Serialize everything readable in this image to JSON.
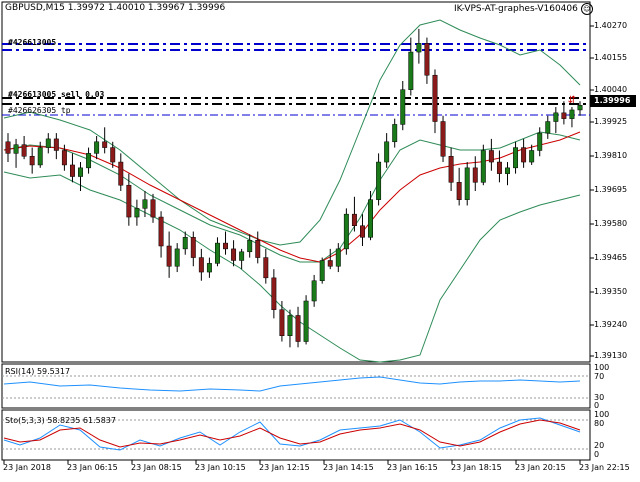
{
  "header": {
    "symbol_info": "GBPUSD,M15  1.39972 1.40010 1.39967 1.39996",
    "ea_name": "IK-VPS-AT-graphes-V160406",
    "ea_icon": "smiley-icon"
  },
  "order_tags": {
    "tag1": "#426613005",
    "tag2": "#426613005 sell 0.03",
    "tag3": "#426626305 tp"
  },
  "price_axis": {
    "labels": [
      "1.40270",
      "1.40155",
      "1.40040",
      "1.39925",
      "1.39810",
      "1.39695",
      "1.39580",
      "1.39465",
      "1.39350",
      "1.39240",
      "1.39130"
    ],
    "current_price": "1.39996"
  },
  "time_axis": {
    "labels": [
      "23 Jan 2018",
      "23 Jan 06:15",
      "23 Jan 08:15",
      "23 Jan 10:15",
      "23 Jan 12:15",
      "23 Jan 14:15",
      "23 Jan 16:15",
      "23 Jan 18:15",
      "23 Jan 20:15",
      "23 Jan 22:15"
    ]
  },
  "rsi": {
    "title": "RSI(14) 59.5317",
    "levels": [
      "100",
      "70",
      "30",
      "0"
    ]
  },
  "stoch": {
    "title": "Sto(5,3,3) 58.8235 61.5837",
    "levels": [
      "100",
      "80",
      "20",
      "0"
    ]
  },
  "colors": {
    "bull_candle": "#1a7a1a",
    "bear_candle": "#8b1a1a",
    "bollinger": "#2e8b57",
    "ma": "#cc0000",
    "rsi_line": "#1e90ff",
    "stoch_main": "#1e90ff",
    "stoch_signal": "#cc0000",
    "order_line_blue": "#0000cc",
    "order_line_black": "#000000"
  },
  "chart_data": {
    "type": "candlestick",
    "symbol": "GBPUSD",
    "timeframe": "M15",
    "candles": [
      [
        1.3987,
        1.399,
        1.398,
        1.3983
      ],
      [
        1.3983,
        1.3988,
        1.3978,
        1.3986
      ],
      [
        1.3986,
        1.3989,
        1.3981,
        1.3982
      ],
      [
        1.3982,
        1.3985,
        1.3976,
        1.3979
      ],
      [
        1.3979,
        1.3987,
        1.3978,
        1.3985
      ],
      [
        1.3985,
        1.399,
        1.3983,
        1.3988
      ],
      [
        1.3988,
        1.399,
        1.3981,
        1.3984
      ],
      [
        1.3984,
        1.3986,
        1.3977,
        1.3979
      ],
      [
        1.3979,
        1.3983,
        1.3973,
        1.3975
      ],
      [
        1.3975,
        1.398,
        1.397,
        1.3978
      ],
      [
        1.3978,
        1.3985,
        1.3976,
        1.3983
      ],
      [
        1.3983,
        1.3989,
        1.3981,
        1.3987
      ],
      [
        1.3987,
        1.3992,
        1.3983,
        1.3985
      ],
      [
        1.3985,
        1.3987,
        1.3978,
        1.398
      ],
      [
        1.398,
        1.3983,
        1.397,
        1.3972
      ],
      [
        1.3972,
        1.3976,
        1.3958,
        1.3961
      ],
      [
        1.3961,
        1.3967,
        1.3958,
        1.3964
      ],
      [
        1.3964,
        1.397,
        1.3961,
        1.3967
      ],
      [
        1.3967,
        1.3969,
        1.3959,
        1.3961
      ],
      [
        1.3961,
        1.3963,
        1.3947,
        1.3951
      ],
      [
        1.3951,
        1.3956,
        1.394,
        1.3944
      ],
      [
        1.3944,
        1.3952,
        1.3942,
        1.395
      ],
      [
        1.395,
        1.3956,
        1.3948,
        1.3954
      ],
      [
        1.3954,
        1.3956,
        1.3944,
        1.3947
      ],
      [
        1.3947,
        1.395,
        1.3939,
        1.3942
      ],
      [
        1.3942,
        1.3947,
        1.394,
        1.3945
      ],
      [
        1.3945,
        1.3954,
        1.3944,
        1.3952
      ],
      [
        1.3952,
        1.3956,
        1.3948,
        1.395
      ],
      [
        1.395,
        1.3953,
        1.3944,
        1.3946
      ],
      [
        1.3946,
        1.395,
        1.3943,
        1.3949
      ],
      [
        1.3949,
        1.3955,
        1.3947,
        1.3953
      ],
      [
        1.3953,
        1.3956,
        1.3945,
        1.3947
      ],
      [
        1.3947,
        1.395,
        1.3938,
        1.394
      ],
      [
        1.394,
        1.3943,
        1.3926,
        1.3929
      ],
      [
        1.3929,
        1.3932,
        1.3918,
        1.392
      ],
      [
        1.392,
        1.3929,
        1.3916,
        1.3927
      ],
      [
        1.3927,
        1.393,
        1.3916,
        1.3918
      ],
      [
        1.3918,
        1.3934,
        1.3917,
        1.3932
      ],
      [
        1.3932,
        1.3941,
        1.393,
        1.3939
      ],
      [
        1.3939,
        1.3947,
        1.3938,
        1.3946
      ],
      [
        1.3946,
        1.395,
        1.3943,
        1.3944
      ],
      [
        1.3944,
        1.3952,
        1.3942,
        1.395
      ],
      [
        1.395,
        1.3964,
        1.3948,
        1.3962
      ],
      [
        1.3962,
        1.3968,
        1.3956,
        1.3958
      ],
      [
        1.3958,
        1.3962,
        1.3951,
        1.3954
      ],
      [
        1.3954,
        1.397,
        1.3953,
        1.3967
      ],
      [
        1.3967,
        1.3983,
        1.3965,
        1.398
      ],
      [
        1.398,
        1.399,
        1.3978,
        1.3987
      ],
      [
        1.3987,
        1.3995,
        1.3985,
        1.3993
      ],
      [
        1.3993,
        1.4008,
        1.3991,
        1.4005
      ],
      [
        1.4005,
        1.4023,
        1.4003,
        1.4018
      ],
      [
        1.4018,
        1.4026,
        1.4014,
        1.4021
      ],
      [
        1.4021,
        1.4023,
        1.4007,
        1.401
      ],
      [
        1.401,
        1.4012,
        1.399,
        1.3994
      ],
      [
        1.3994,
        1.3996,
        1.398,
        1.3982
      ],
      [
        1.3982,
        1.3985,
        1.397,
        1.3973
      ],
      [
        1.3973,
        1.3978,
        1.3965,
        1.3967
      ],
      [
        1.3967,
        1.398,
        1.3965,
        1.3978
      ],
      [
        1.3978,
        1.3982,
        1.397,
        1.3973
      ],
      [
        1.3973,
        1.3986,
        1.3972,
        1.3984
      ],
      [
        1.3984,
        1.3988,
        1.3977,
        1.398
      ],
      [
        1.398,
        1.3984,
        1.3973,
        1.3976
      ],
      [
        1.3976,
        1.398,
        1.3972,
        1.3978
      ],
      [
        1.3978,
        1.3987,
        1.3976,
        1.3985
      ],
      [
        1.3985,
        1.3988,
        1.3978,
        1.398
      ],
      [
        1.398,
        1.3986,
        1.3979,
        1.3984
      ],
      [
        1.3984,
        1.3992,
        1.3982,
        1.399
      ],
      [
        1.399,
        1.3996,
        1.3988,
        1.3994
      ],
      [
        1.3994,
        1.3999,
        1.399,
        1.3997
      ],
      [
        1.3997,
        1.4001,
        1.3993,
        1.3995
      ],
      [
        1.3995,
        1.3999,
        1.3992,
        1.3998
      ],
      [
        1.3998,
        1.4001,
        1.3996,
        1.39996
      ]
    ],
    "price_range": [
      1.3913,
      1.4027
    ]
  }
}
